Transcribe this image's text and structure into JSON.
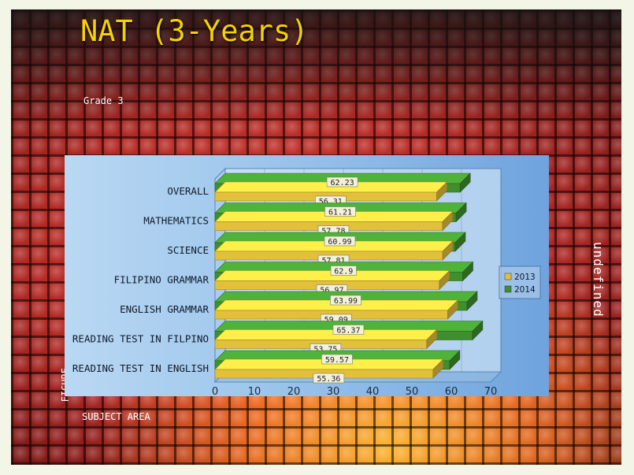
{
  "slide": {
    "title": "NAT (3-Years)",
    "subtitle": "Grade 3",
    "side_text": "undefined",
    "figure_label": "FIGURE",
    "subject_label": "SUBJECT AREA"
  },
  "colors": {
    "title": "#f5d200",
    "series_2013": "#e2c03a",
    "series_2014": "#3f8f2e"
  },
  "chart_data": {
    "type": "bar",
    "orientation": "horizontal",
    "categories": [
      "OVERALL",
      "MATHEMATICS",
      "SCIENCE",
      "FILIPINO GRAMMAR",
      "ENGLISH GRAMMAR",
      "READING TEST IN FILPINO",
      "READING TEST IN ENGLISH"
    ],
    "series": [
      {
        "name": "2013",
        "values": [
          56.31,
          57.78,
          57.81,
          56.97,
          59.09,
          53.75,
          55.36
        ]
      },
      {
        "name": "2014",
        "values": [
          62.23,
          61.21,
          60.99,
          62.9,
          63.99,
          65.37,
          59.57
        ]
      }
    ],
    "xlim": [
      0,
      70
    ],
    "xticks": [
      0,
      10,
      20,
      30,
      40,
      50,
      60,
      70
    ],
    "legend": "right",
    "style": "3d"
  }
}
